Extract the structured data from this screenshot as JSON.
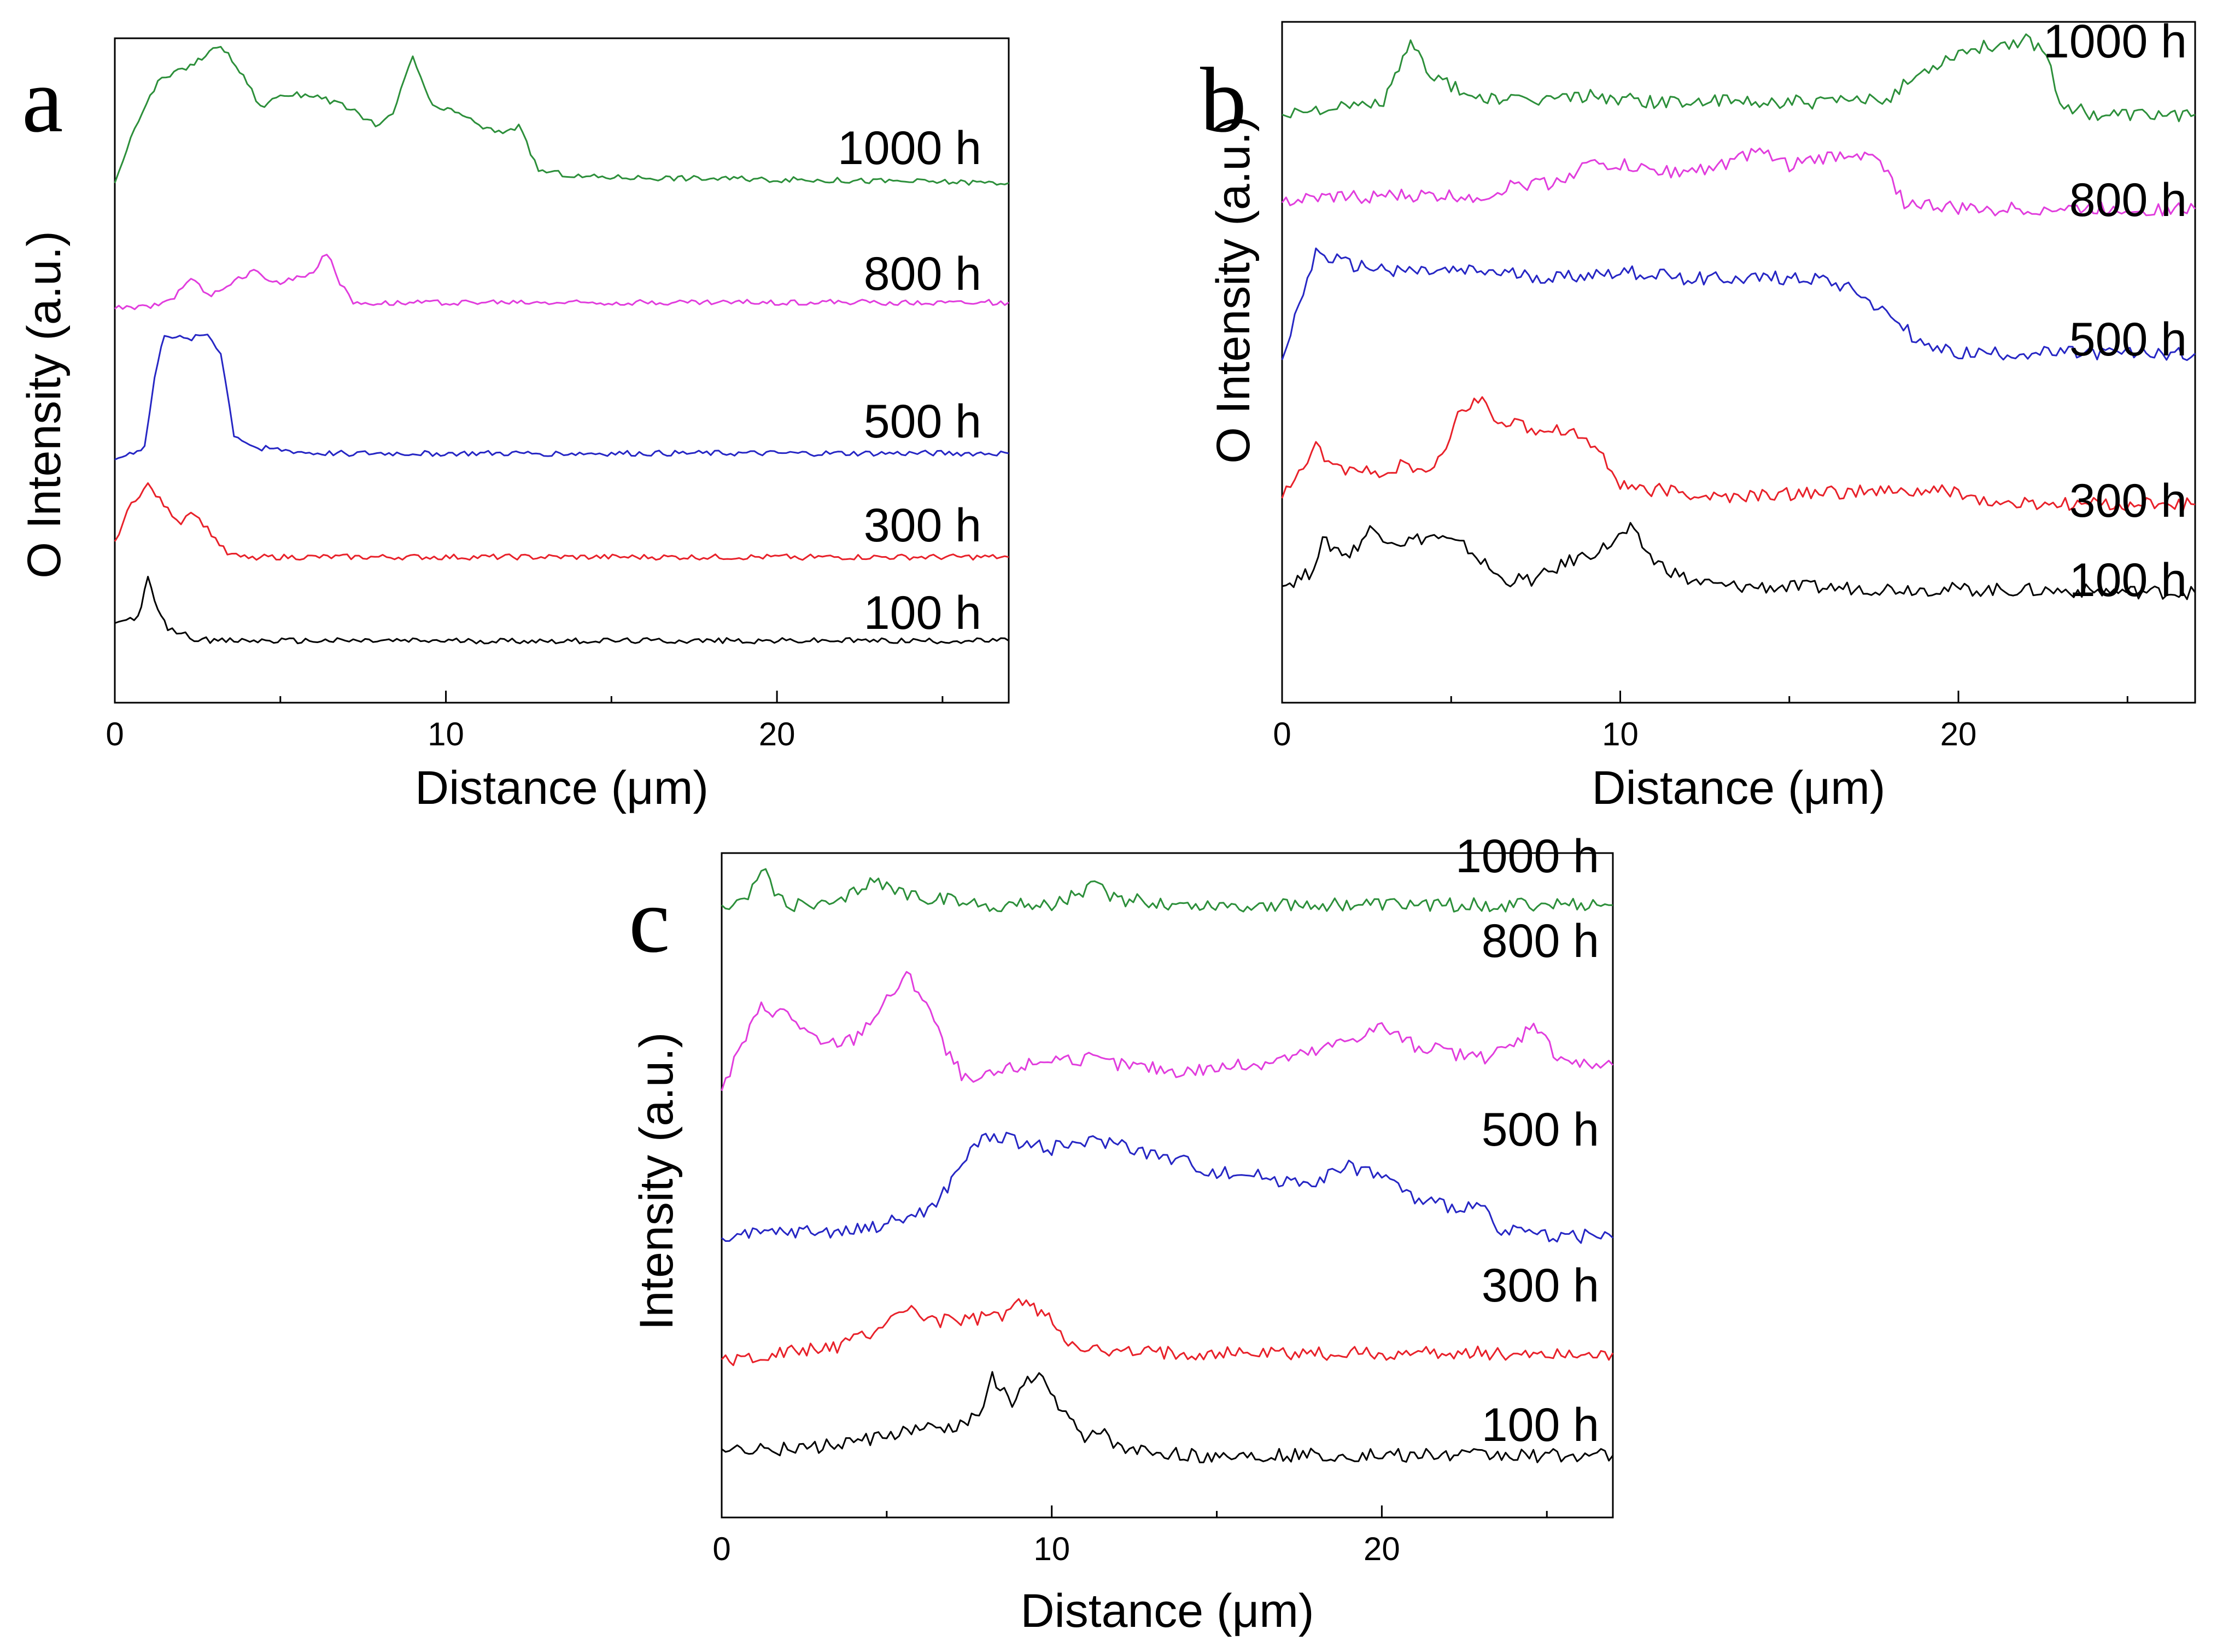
{
  "chart_data": [
    {
      "type": "line",
      "panel_label": "a",
      "xlabel": "Distance (μm)",
      "ylabel": "O Intensity (a.u.)",
      "xlim": [
        0,
        27
      ],
      "x_ticks": [
        0,
        10,
        20
      ],
      "x_tick_labels": [
        "0",
        "10",
        "20"
      ],
      "ylim": [
        0,
        100
      ],
      "series": [
        {
          "name": "100 h",
          "color": "#000000",
          "points": [
            [
              0,
              7
            ],
            [
              0.7,
              8
            ],
            [
              1.0,
              14
            ],
            [
              1.3,
              9
            ],
            [
              1.6,
              6
            ],
            [
              2.0,
              5.5
            ],
            [
              2.4,
              4.5
            ],
            [
              3,
              4.2
            ],
            [
              27,
              4.2
            ]
          ]
        },
        {
          "name": "300 h",
          "color": "#e8212a",
          "points": [
            [
              0,
              20
            ],
            [
              0.5,
              26
            ],
            [
              1.0,
              29
            ],
            [
              1.6,
              25
            ],
            [
              2.0,
              23
            ],
            [
              2.3,
              25
            ],
            [
              2.8,
              22
            ],
            [
              3.4,
              18
            ],
            [
              3.8,
              17.5
            ],
            [
              10,
              17.5
            ],
            [
              27,
              17.5
            ]
          ]
        },
        {
          "name": "500 h",
          "color": "#2626c4",
          "points": [
            [
              0,
              33
            ],
            [
              0.9,
              35
            ],
            [
              1.2,
              46
            ],
            [
              1.5,
              53
            ],
            [
              2.2,
              52
            ],
            [
              2.8,
              53
            ],
            [
              3.2,
              50
            ],
            [
              3.6,
              37
            ],
            [
              4.2,
              35
            ],
            [
              6,
              34
            ],
            [
              27,
              34
            ]
          ]
        },
        {
          "name": "800 h",
          "color": "#e13ddd",
          "points": [
            [
              0,
              57
            ],
            [
              1.2,
              57.5
            ],
            [
              1.8,
              59
            ],
            [
              2.3,
              62
            ],
            [
              2.8,
              59
            ],
            [
              3.5,
              61
            ],
            [
              4.2,
              63
            ],
            [
              5,
              61
            ],
            [
              6,
              63
            ],
            [
              6.4,
              66
            ],
            [
              6.8,
              61
            ],
            [
              7.2,
              58
            ],
            [
              10,
              58
            ],
            [
              27,
              58
            ]
          ]
        },
        {
          "name": "1000 h",
          "color": "#2c8f3a",
          "points": [
            [
              0,
              77
            ],
            [
              0.6,
              86
            ],
            [
              1.3,
              93
            ],
            [
              2.4,
              96
            ],
            [
              3.2,
              99
            ],
            [
              4.0,
              93
            ],
            [
              4.4,
              89
            ],
            [
              5.0,
              91
            ],
            [
              6.0,
              91
            ],
            [
              7.0,
              89
            ],
            [
              8.0,
              86
            ],
            [
              8.4,
              88
            ],
            [
              9.0,
              97
            ],
            [
              9.6,
              89
            ],
            [
              10.5,
              88
            ],
            [
              11.0,
              86
            ],
            [
              11.6,
              85
            ],
            [
              12.2,
              86
            ],
            [
              12.8,
              79
            ],
            [
              14,
              78
            ],
            [
              27,
              77
            ]
          ]
        }
      ]
    },
    {
      "type": "line",
      "panel_label": "b",
      "xlabel": "Distance (μm)",
      "ylabel": "O Intensity (a.u.)",
      "xlim": [
        0,
        27
      ],
      "x_ticks": [
        0,
        10,
        20
      ],
      "x_tick_labels": [
        "0",
        "10",
        "20"
      ],
      "ylim": [
        0,
        100
      ],
      "series": [
        {
          "name": "100 h",
          "color": "#000000",
          "points": [
            [
              0,
              12
            ],
            [
              0.8,
              14
            ],
            [
              1.2,
              19
            ],
            [
              2,
              17
            ],
            [
              2.6,
              21
            ],
            [
              3.5,
              19
            ],
            [
              4.5,
              20
            ],
            [
              5.5,
              18
            ],
            [
              6.5,
              13
            ],
            [
              7.5,
              13
            ],
            [
              8.5,
              16
            ],
            [
              9.5,
              18
            ],
            [
              10.3,
              21
            ],
            [
              11,
              16
            ],
            [
              12,
              13
            ],
            [
              13,
              12
            ],
            [
              27,
              11
            ]
          ]
        },
        {
          "name": "300 h",
          "color": "#e8212a",
          "points": [
            [
              0,
              26
            ],
            [
              1.0,
              34
            ],
            [
              1.5,
              31
            ],
            [
              2.5,
              30
            ],
            [
              3.5,
              31
            ],
            [
              4.5,
              30
            ],
            [
              5.2,
              39
            ],
            [
              5.8,
              42
            ],
            [
              6.5,
              38
            ],
            [
              7.5,
              37
            ],
            [
              8.5,
              37
            ],
            [
              9.5,
              33
            ],
            [
              10.0,
              28
            ],
            [
              11.5,
              27
            ],
            [
              13,
              26
            ],
            [
              16,
              27
            ],
            [
              20,
              27
            ],
            [
              21,
              25
            ],
            [
              27,
              25
            ]
          ]
        },
        {
          "name": "500 h",
          "color": "#2626c4",
          "points": [
            [
              0,
              48
            ],
            [
              1.0,
              65
            ],
            [
              2,
              63
            ],
            [
              4,
              62
            ],
            [
              6,
              62
            ],
            [
              8,
              61
            ],
            [
              10,
              62
            ],
            [
              12,
              61
            ],
            [
              14,
              61
            ],
            [
              16,
              61
            ],
            [
              17,
              59
            ],
            [
              18,
              55
            ],
            [
              19,
              50
            ],
            [
              20,
              49
            ],
            [
              27,
              49
            ]
          ]
        },
        {
          "name": "800 h",
          "color": "#e13ddd",
          "points": [
            [
              0,
              73
            ],
            [
              2,
              74
            ],
            [
              4,
              74
            ],
            [
              6,
              74
            ],
            [
              7,
              76
            ],
            [
              8,
              76
            ],
            [
              9,
              79
            ],
            [
              10,
              79
            ],
            [
              11,
              78
            ],
            [
              12,
              78
            ],
            [
              13,
              79
            ],
            [
              14,
              81
            ],
            [
              15,
              79
            ],
            [
              16,
              80
            ],
            [
              17,
              81
            ],
            [
              17.8,
              79
            ],
            [
              18.4,
              73
            ],
            [
              20,
              72
            ],
            [
              27,
              72
            ]
          ]
        },
        {
          "name": "1000 h",
          "color": "#2c8f3a",
          "points": [
            [
              0,
              87
            ],
            [
              1,
              88
            ],
            [
              2,
              88
            ],
            [
              3,
              89
            ],
            [
              3.8,
              98
            ],
            [
              4.5,
              93
            ],
            [
              5.5,
              90
            ],
            [
              7,
              89
            ],
            [
              9,
              90
            ],
            [
              11,
              89
            ],
            [
              14,
              89
            ],
            [
              17,
              89
            ],
            [
              18,
              90
            ],
            [
              19,
              94
            ],
            [
              20,
              97
            ],
            [
              21,
              98
            ],
            [
              22,
              99
            ],
            [
              22.6,
              97
            ],
            [
              23.0,
              89
            ],
            [
              24,
              87
            ],
            [
              27,
              87
            ]
          ]
        }
      ]
    },
    {
      "type": "line",
      "panel_label": "c",
      "xlabel": "Distance (μm)",
      "ylabel": "Intensity (a.u.)",
      "xlim": [
        0,
        27
      ],
      "x_ticks": [
        0,
        10,
        20
      ],
      "x_tick_labels": [
        "0",
        "10",
        "20"
      ],
      "ylim": [
        0,
        100
      ],
      "series": [
        {
          "name": "100 h",
          "color": "#000000",
          "points": [
            [
              0,
              6
            ],
            [
              2,
              6
            ],
            [
              4,
              7
            ],
            [
              5,
              8
            ],
            [
              6,
              9
            ],
            [
              7,
              9
            ],
            [
              7.8,
              12
            ],
            [
              8.2,
              17
            ],
            [
              8.8,
              13
            ],
            [
              9.5,
              18
            ],
            [
              10.2,
              13
            ],
            [
              11,
              7
            ],
            [
              11.6,
              9
            ],
            [
              12,
              6
            ],
            [
              14,
              5
            ],
            [
              27,
              5
            ]
          ]
        },
        {
          "name": "300 h",
          "color": "#e8212a",
          "points": [
            [
              0,
              20
            ],
            [
              2,
              21
            ],
            [
              3.5,
              22
            ],
            [
              4.5,
              24
            ],
            [
              5.5,
              28
            ],
            [
              6.5,
              26
            ],
            [
              7.5,
              26
            ],
            [
              8.5,
              27
            ],
            [
              9.0,
              29
            ],
            [
              9.8,
              27
            ],
            [
              10.5,
              23
            ],
            [
              11.5,
              21
            ],
            [
              14,
              21
            ],
            [
              27,
              21
            ]
          ]
        },
        {
          "name": "500 h",
          "color": "#2626c4",
          "points": [
            [
              0,
              39
            ],
            [
              2,
              40
            ],
            [
              4,
              40
            ],
            [
              5.5,
              42
            ],
            [
              6.5,
              44
            ],
            [
              7.3,
              51
            ],
            [
              8.0,
              55
            ],
            [
              9,
              54
            ],
            [
              10,
              53
            ],
            [
              11,
              54
            ],
            [
              12,
              54
            ],
            [
              13,
              52
            ],
            [
              14,
              51
            ],
            [
              15,
              49
            ],
            [
              16,
              49
            ],
            [
              17,
              48
            ],
            [
              18,
              48
            ],
            [
              19,
              50
            ],
            [
              20,
              49
            ],
            [
              21,
              45
            ],
            [
              22,
              44
            ],
            [
              23,
              44
            ],
            [
              23.5,
              40
            ],
            [
              27,
              39
            ]
          ]
        },
        {
          "name": "800 h",
          "color": "#e13ddd",
          "points": [
            [
              0,
              62
            ],
            [
              0.5,
              68
            ],
            [
              1.2,
              75
            ],
            [
              2.0,
              74
            ],
            [
              3,
              69
            ],
            [
              4,
              70
            ],
            [
              5,
              76
            ],
            [
              5.6,
              80
            ],
            [
              6.2,
              76
            ],
            [
              6.8,
              68
            ],
            [
              7.5,
              63
            ],
            [
              8.5,
              65
            ],
            [
              10,
              67
            ],
            [
              11,
              67
            ],
            [
              12,
              66
            ],
            [
              14,
              65
            ],
            [
              16,
              66
            ],
            [
              18,
              68
            ],
            [
              19,
              70
            ],
            [
              20,
              72
            ],
            [
              21,
              69
            ],
            [
              22,
              68
            ],
            [
              23,
              67
            ],
            [
              24,
              69
            ],
            [
              24.6,
              73
            ],
            [
              25.2,
              68
            ],
            [
              26,
              66
            ],
            [
              27,
              66
            ]
          ]
        },
        {
          "name": "1000 h",
          "color": "#2c8f3a",
          "points": [
            [
              0,
              91
            ],
            [
              0.8,
              92
            ],
            [
              1.2,
              97
            ],
            [
              1.6,
              93
            ],
            [
              2.2,
              91
            ],
            [
              3.5,
              91
            ],
            [
              4.5,
              95
            ],
            [
              5.5,
              93
            ],
            [
              6.5,
              92
            ],
            [
              8,
              91
            ],
            [
              10,
              91
            ],
            [
              11.3,
              94
            ],
            [
              12,
              92
            ],
            [
              14,
              91
            ],
            [
              27,
              91
            ]
          ]
        }
      ]
    }
  ]
}
